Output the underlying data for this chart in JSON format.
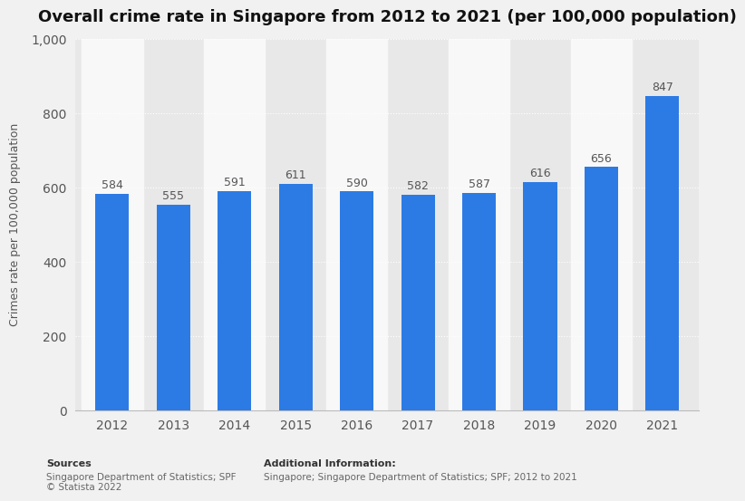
{
  "title": "Overall crime rate in Singapore from 2012 to 2021 (per 100,000 population)",
  "years": [
    2012,
    2013,
    2014,
    2015,
    2016,
    2017,
    2018,
    2019,
    2020,
    2021
  ],
  "values": [
    584,
    555,
    591,
    611,
    590,
    582,
    587,
    616,
    656,
    847
  ],
  "bar_color": "#2c7be5",
  "ylabel": "Crimes rate per 100,000 population",
  "ylim": [
    0,
    1000
  ],
  "yticks": [
    0,
    200,
    400,
    600,
    800,
    1000
  ],
  "background_color": "#f1f1f1",
  "plot_background_color": "#e8e8e8",
  "column_stripe_color": "#f8f8f8",
  "title_fontsize": 13,
  "label_fontsize": 9,
  "tick_fontsize": 10,
  "value_label_fontsize": 9,
  "sources_text": "Sources\nSingapore Department of Statistics; SPF\n© Statista 2022",
  "additional_info_text": "Additional Information:\nSingapore; Singapore Department of Statistics; SPF; 2012 to 2021"
}
